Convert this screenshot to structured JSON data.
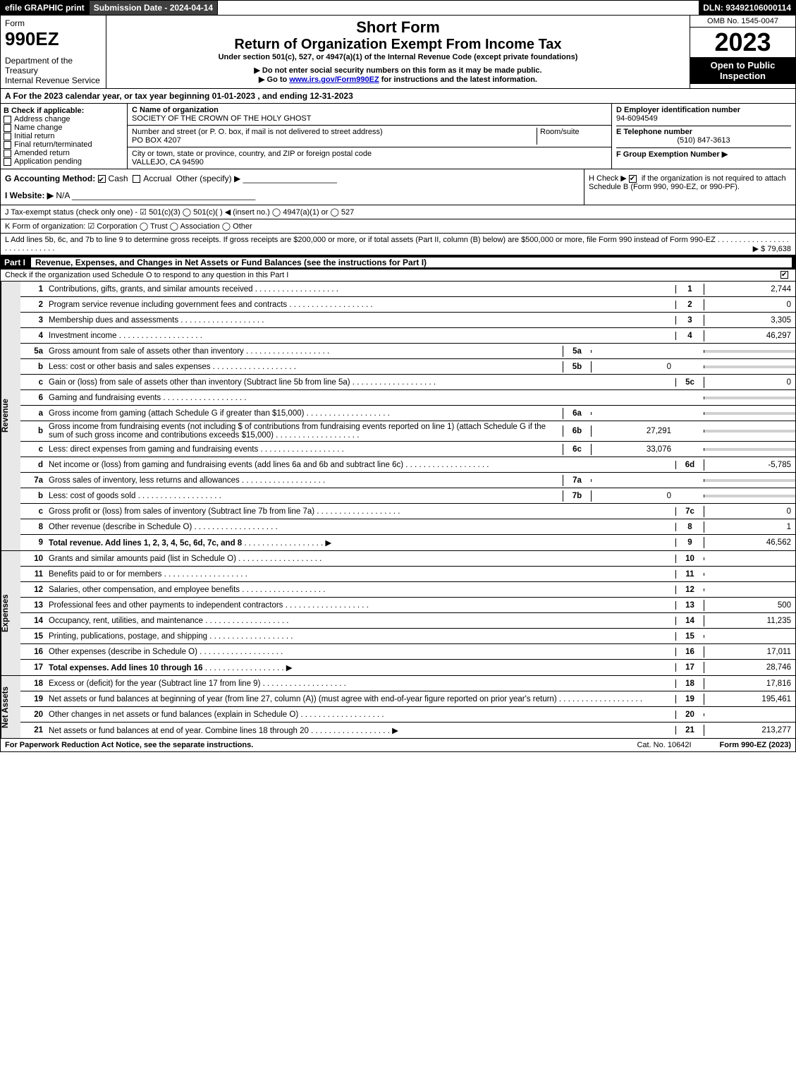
{
  "topbar": {
    "efile": "efile GRAPHIC print",
    "subdate": "Submission Date - 2024-04-14",
    "dln": "DLN: 93492106000114"
  },
  "header": {
    "form_word": "Form",
    "form_no": "990EZ",
    "dept": "Department of the Treasury\nInternal Revenue Service",
    "title1": "Short Form",
    "title2": "Return of Organization Exempt From Income Tax",
    "subtitle": "Under section 501(c), 527, or 4947(a)(1) of the Internal Revenue Code (except private foundations)",
    "note1": "▶ Do not enter social security numbers on this form as it may be made public.",
    "note2_pre": "▶ Go to ",
    "note2_link": "www.irs.gov/Form990EZ",
    "note2_post": " for instructions and the latest information.",
    "omb": "OMB No. 1545-0047",
    "year": "2023",
    "open": "Open to Public Inspection"
  },
  "A": "A  For the 2023 calendar year, or tax year beginning 01-01-2023 , and ending 12-31-2023",
  "B": {
    "label": "B  Check if applicable:",
    "opts": [
      "Address change",
      "Name change",
      "Initial return",
      "Final return/terminated",
      "Amended return",
      "Application pending"
    ]
  },
  "C": {
    "name_label": "C Name of organization",
    "name": "SOCIETY OF THE CROWN OF THE HOLY GHOST",
    "street_label": "Number and street (or P. O. box, if mail is not delivered to street address)",
    "street": "PO BOX 4207",
    "room_label": "Room/suite",
    "city_label": "City or town, state or province, country, and ZIP or foreign postal code",
    "city": "VALLEJO, CA  94590"
  },
  "D": {
    "label": "D Employer identification number",
    "ein": "94-6094549"
  },
  "E": {
    "label": "E Telephone number",
    "phone": "(510) 847-3613"
  },
  "F": {
    "label": "F Group Exemption Number  ▶"
  },
  "G": {
    "label": "G Accounting Method:",
    "cash": "Cash",
    "accrual": "Accrual",
    "other": "Other (specify) ▶"
  },
  "H": {
    "text1": "H  Check ▶ ",
    "text2": " if the organization is not required to attach Schedule B (Form 990, 990-EZ, or 990-PF)."
  },
  "I": {
    "label": "I Website: ▶",
    "val": "N/A"
  },
  "J": "J Tax-exempt status (check only one) -  ☑ 501(c)(3)  ◯ 501(c)(  ) ◀ (insert no.)  ◯ 4947(a)(1) or  ◯ 527",
  "K": "K Form of organization:   ☑ Corporation   ◯ Trust   ◯ Association   ◯ Other",
  "L": {
    "text": "L Add lines 5b, 6c, and 7b to line 9 to determine gross receipts. If gross receipts are $200,000 or more, or if total assets (Part II, column (B) below) are $500,000 or more, file Form 990 instead of Form 990-EZ",
    "amount": "▶ $ 79,638"
  },
  "part1": {
    "label": "Part I",
    "title": "Revenue, Expenses, and Changes in Net Assets or Fund Balances (see the instructions for Part I)",
    "check": "Check if the organization used Schedule O to respond to any question in this Part I"
  },
  "sides": {
    "rev": "Revenue",
    "exp": "Expenses",
    "na": "Net Assets"
  },
  "rev": [
    {
      "n": "1",
      "d": "Contributions, gifts, grants, and similar amounts received",
      "ref": "1",
      "v": "2,744"
    },
    {
      "n": "2",
      "d": "Program service revenue including government fees and contracts",
      "ref": "2",
      "v": "0"
    },
    {
      "n": "3",
      "d": "Membership dues and assessments",
      "ref": "3",
      "v": "3,305"
    },
    {
      "n": "4",
      "d": "Investment income",
      "ref": "4",
      "v": "46,297"
    },
    {
      "n": "5a",
      "d": "Gross amount from sale of assets other than inventory",
      "sub": "5a",
      "sv": "",
      "shade": true
    },
    {
      "n": "b",
      "d": "Less: cost or other basis and sales expenses",
      "sub": "5b",
      "sv": "0",
      "shade": true
    },
    {
      "n": "c",
      "d": "Gain or (loss) from sale of assets other than inventory (Subtract line 5b from line 5a)",
      "ref": "5c",
      "v": "0"
    },
    {
      "n": "6",
      "d": "Gaming and fundraising events",
      "shade": true,
      "noval": true
    },
    {
      "n": "a",
      "d": "Gross income from gaming (attach Schedule G if greater than $15,000)",
      "sub": "6a",
      "sv": "",
      "shade": true
    },
    {
      "n": "b",
      "d": "Gross income from fundraising events (not including $                    of contributions from fundraising events reported on line 1) (attach Schedule G if the sum of such gross income and contributions exceeds $15,000)",
      "sub": "6b",
      "sv": "27,291",
      "shade": true
    },
    {
      "n": "c",
      "d": "Less: direct expenses from gaming and fundraising events",
      "sub": "6c",
      "sv": "33,076",
      "shade": true
    },
    {
      "n": "d",
      "d": "Net income or (loss) from gaming and fundraising events (add lines 6a and 6b and subtract line 6c)",
      "ref": "6d",
      "v": "-5,785"
    },
    {
      "n": "7a",
      "d": "Gross sales of inventory, less returns and allowances",
      "sub": "7a",
      "sv": "",
      "shade": true
    },
    {
      "n": "b",
      "d": "Less: cost of goods sold",
      "sub": "7b",
      "sv": "0",
      "shade": true
    },
    {
      "n": "c",
      "d": "Gross profit or (loss) from sales of inventory (Subtract line 7b from line 7a)",
      "ref": "7c",
      "v": "0"
    },
    {
      "n": "8",
      "d": "Other revenue (describe in Schedule O)",
      "ref": "8",
      "v": "1"
    },
    {
      "n": "9",
      "d": "Total revenue. Add lines 1, 2, 3, 4, 5c, 6d, 7c, and 8",
      "ref": "9",
      "v": "46,562",
      "bold": true,
      "arrow": true
    }
  ],
  "exp": [
    {
      "n": "10",
      "d": "Grants and similar amounts paid (list in Schedule O)",
      "ref": "10",
      "v": ""
    },
    {
      "n": "11",
      "d": "Benefits paid to or for members",
      "ref": "11",
      "v": ""
    },
    {
      "n": "12",
      "d": "Salaries, other compensation, and employee benefits",
      "ref": "12",
      "v": ""
    },
    {
      "n": "13",
      "d": "Professional fees and other payments to independent contractors",
      "ref": "13",
      "v": "500"
    },
    {
      "n": "14",
      "d": "Occupancy, rent, utilities, and maintenance",
      "ref": "14",
      "v": "11,235"
    },
    {
      "n": "15",
      "d": "Printing, publications, postage, and shipping",
      "ref": "15",
      "v": ""
    },
    {
      "n": "16",
      "d": "Other expenses (describe in Schedule O)",
      "ref": "16",
      "v": "17,011"
    },
    {
      "n": "17",
      "d": "Total expenses. Add lines 10 through 16",
      "ref": "17",
      "v": "28,746",
      "bold": true,
      "arrow": true
    }
  ],
  "na": [
    {
      "n": "18",
      "d": "Excess or (deficit) for the year (Subtract line 17 from line 9)",
      "ref": "18",
      "v": "17,816"
    },
    {
      "n": "19",
      "d": "Net assets or fund balances at beginning of year (from line 27, column (A)) (must agree with end-of-year figure reported on prior year's return)",
      "ref": "19",
      "v": "195,461"
    },
    {
      "n": "20",
      "d": "Other changes in net assets or fund balances (explain in Schedule O)",
      "ref": "20",
      "v": ""
    },
    {
      "n": "21",
      "d": "Net assets or fund balances at end of year. Combine lines 18 through 20",
      "ref": "21",
      "v": "213,277",
      "arrow": true
    }
  ],
  "footer": {
    "left": "For Paperwork Reduction Act Notice, see the separate instructions.",
    "mid": "Cat. No. 10642I",
    "right": "Form 990-EZ (2023)"
  }
}
